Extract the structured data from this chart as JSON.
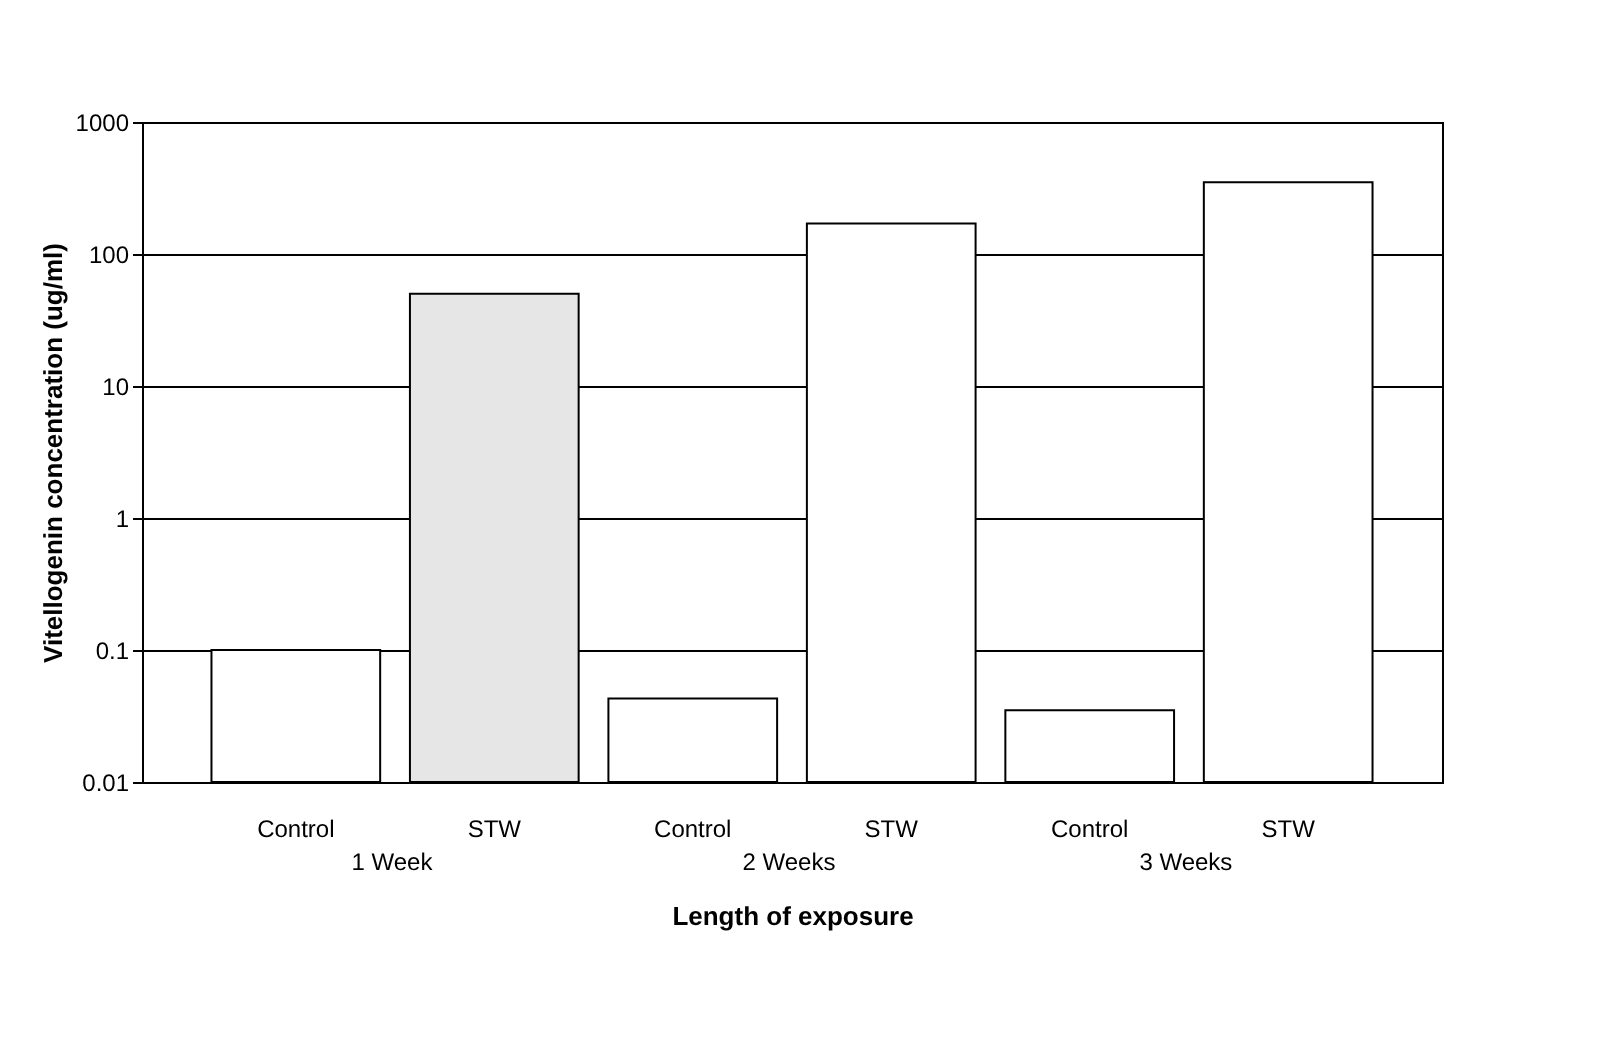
{
  "chart_data": {
    "type": "bar",
    "xlabel": "Length of exposure",
    "ylabel": "Vitellogenin concentration (ug/ml)",
    "categories": [
      "Control",
      "STW",
      "Control",
      "STW",
      "Control",
      "STW"
    ],
    "values": [
      0.1,
      50,
      0.043,
      170,
      0.035,
      350
    ],
    "colors": [
      "#ffffff",
      "#e6e6e6",
      "#ffffff",
      "#ffffff",
      "#ffffff",
      "#ffffff"
    ],
    "annotations": [
      "1 Week",
      "2 Weeks",
      "3 Weeks"
    ],
    "log": "y",
    "ylim": [
      0.01,
      1000
    ],
    "yticks": [
      0.01,
      0.1,
      1,
      10,
      100,
      1000
    ],
    "grid": "y",
    "legend": false
  }
}
